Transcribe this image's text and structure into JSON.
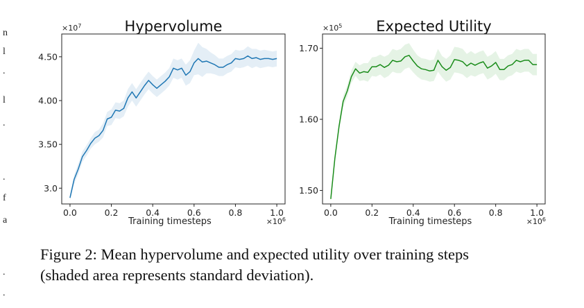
{
  "margin_fragments": [
    "n",
    "l",
    ".",
    "l",
    ".",
    ".",
    "f",
    "a",
    ".",
    "."
  ],
  "caption": {
    "line1": "Figure 2: Mean hypervolume and expected utility over training steps",
    "line2": "(shaded area represents standard deviation)."
  },
  "chart_data": [
    {
      "type": "line",
      "title": "Hypervolume",
      "xlabel": "Training timesteps",
      "ylabel": "",
      "x_multiplier": "×10",
      "x_multiplier_exp": "6",
      "y_multiplier": "×10",
      "y_multiplier_exp": "7",
      "xlim": [
        -0.04,
        1.04
      ],
      "ylim": [
        2.82,
        4.76
      ],
      "xticks": [
        0.0,
        0.2,
        0.4,
        0.6,
        0.8,
        1.0
      ],
      "xtick_labels": [
        "0.0",
        "0.2",
        "0.4",
        "0.6",
        "0.8",
        "1.0"
      ],
      "yticks": [
        3.0,
        3.5,
        4.0,
        4.5
      ],
      "ytick_labels": [
        "3.0",
        "3.50",
        "4.00",
        "4.50"
      ],
      "color": "#1f77b4",
      "band_color": "#1f77b4",
      "grid": false,
      "series": [
        {
          "x": [
            0.0,
            0.02,
            0.04,
            0.06,
            0.08,
            0.1,
            0.12,
            0.14,
            0.16,
            0.18,
            0.2,
            0.22,
            0.24,
            0.26,
            0.28,
            0.3,
            0.32,
            0.34,
            0.36,
            0.38,
            0.4,
            0.42,
            0.44,
            0.46,
            0.48,
            0.5,
            0.52,
            0.54,
            0.56,
            0.58,
            0.6,
            0.62,
            0.64,
            0.66,
            0.68,
            0.7,
            0.72,
            0.74,
            0.76,
            0.78,
            0.8,
            0.82,
            0.84,
            0.86,
            0.88,
            0.9,
            0.92,
            0.94,
            0.96,
            0.98,
            1.0
          ],
          "values": [
            2.89,
            3.1,
            3.22,
            3.36,
            3.43,
            3.51,
            3.57,
            3.6,
            3.66,
            3.79,
            3.81,
            3.89,
            3.88,
            3.91,
            4.03,
            4.1,
            4.03,
            4.1,
            4.17,
            4.23,
            4.18,
            4.14,
            4.18,
            4.22,
            4.27,
            4.37,
            4.35,
            4.37,
            4.29,
            4.33,
            4.43,
            4.48,
            4.44,
            4.45,
            4.43,
            4.41,
            4.38,
            4.38,
            4.41,
            4.43,
            4.48,
            4.47,
            4.48,
            4.51,
            4.48,
            4.49,
            4.47,
            4.48,
            4.48,
            4.47,
            4.48
          ],
          "std": [
            0.03,
            0.05,
            0.06,
            0.06,
            0.06,
            0.06,
            0.07,
            0.07,
            0.08,
            0.08,
            0.09,
            0.09,
            0.09,
            0.09,
            0.1,
            0.1,
            0.1,
            0.1,
            0.1,
            0.1,
            0.1,
            0.1,
            0.1,
            0.1,
            0.1,
            0.11,
            0.11,
            0.11,
            0.12,
            0.13,
            0.14,
            0.18,
            0.17,
            0.14,
            0.12,
            0.11,
            0.1,
            0.1,
            0.1,
            0.1,
            0.1,
            0.1,
            0.1,
            0.11,
            0.11,
            0.1,
            0.1,
            0.1,
            0.09,
            0.09,
            0.09
          ]
        }
      ]
    },
    {
      "type": "line",
      "title": "Expected Utility",
      "xlabel": "Training timesteps",
      "ylabel": "",
      "x_multiplier": "×10",
      "x_multiplier_exp": "6",
      "y_multiplier": "×10",
      "y_multiplier_exp": "5",
      "xlim": [
        -0.04,
        1.04
      ],
      "ylim": [
        1.481,
        1.72
      ],
      "xticks": [
        0.0,
        0.2,
        0.4,
        0.6,
        0.8,
        1.0
      ],
      "xtick_labels": [
        "0.0",
        "0.2",
        "0.4",
        "0.6",
        "0.8",
        "1.0"
      ],
      "yticks": [
        1.5,
        1.6,
        1.7
      ],
      "ytick_labels": [
        "1.50",
        "1.60",
        "1.70"
      ],
      "color": "#1a8c1a",
      "band_color": "#2ca02c",
      "grid": false,
      "series": [
        {
          "x": [
            0.0,
            0.02,
            0.04,
            0.06,
            0.08,
            0.1,
            0.12,
            0.14,
            0.16,
            0.18,
            0.2,
            0.22,
            0.24,
            0.26,
            0.28,
            0.3,
            0.32,
            0.34,
            0.36,
            0.38,
            0.4,
            0.42,
            0.44,
            0.46,
            0.48,
            0.5,
            0.52,
            0.54,
            0.56,
            0.58,
            0.6,
            0.62,
            0.64,
            0.66,
            0.68,
            0.7,
            0.72,
            0.74,
            0.76,
            0.78,
            0.8,
            0.82,
            0.84,
            0.86,
            0.88,
            0.9,
            0.92,
            0.94,
            0.96,
            0.98,
            1.0
          ],
          "values": [
            1.488,
            1.545,
            1.59,
            1.625,
            1.64,
            1.66,
            1.671,
            1.665,
            1.667,
            1.666,
            1.674,
            1.674,
            1.677,
            1.673,
            1.676,
            1.683,
            1.681,
            1.682,
            1.688,
            1.69,
            1.682,
            1.675,
            1.671,
            1.67,
            1.668,
            1.669,
            1.683,
            1.674,
            1.669,
            1.673,
            1.684,
            1.683,
            1.681,
            1.675,
            1.679,
            1.676,
            1.679,
            1.681,
            1.672,
            1.675,
            1.68,
            1.67,
            1.67,
            1.675,
            1.677,
            1.683,
            1.681,
            1.683,
            1.683,
            1.677,
            1.677
          ],
          "std": [
            0.003,
            0.005,
            0.006,
            0.008,
            0.008,
            0.009,
            0.01,
            0.011,
            0.012,
            0.013,
            0.013,
            0.014,
            0.014,
            0.015,
            0.015,
            0.016,
            0.016,
            0.017,
            0.017,
            0.017,
            0.016,
            0.015,
            0.015,
            0.015,
            0.015,
            0.015,
            0.016,
            0.015,
            0.016,
            0.017,
            0.018,
            0.018,
            0.018,
            0.017,
            0.017,
            0.016,
            0.016,
            0.016,
            0.016,
            0.016,
            0.016,
            0.015,
            0.015,
            0.015,
            0.015,
            0.016,
            0.016,
            0.016,
            0.016,
            0.015,
            0.015
          ]
        }
      ]
    }
  ]
}
